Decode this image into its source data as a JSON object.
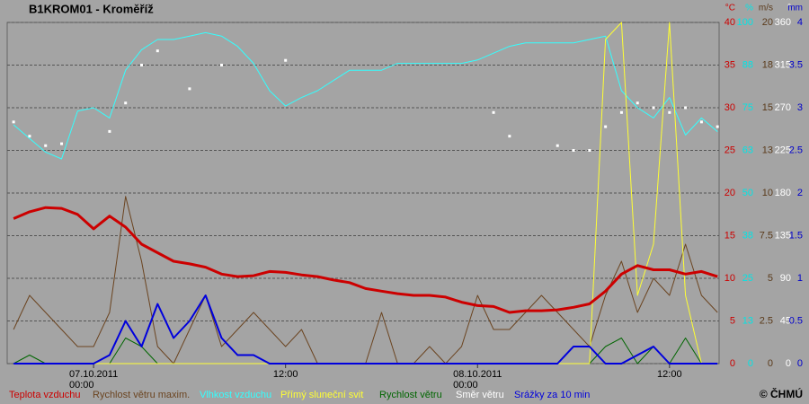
{
  "chart_data": {
    "type": "line",
    "title": "B1KROM01 - Kroměříž",
    "credit": "© ČHMÚ",
    "grid": true,
    "xlim": [
      -5.4,
      39.1
    ],
    "xticks": [
      {
        "value": 0,
        "label": "07.10.2011\n00:00"
      },
      {
        "value": 12,
        "label": "12:00"
      },
      {
        "value": 24,
        "label": "08.10.2011\n00:00"
      },
      {
        "value": 36,
        "label": "12:00"
      }
    ],
    "axes": [
      {
        "unit": "°C",
        "color": "#cc0000",
        "ylim": [
          0,
          40
        ],
        "yticks": [
          0,
          5,
          10,
          15,
          20,
          25,
          30,
          35,
          40
        ]
      },
      {
        "unit": "%",
        "color": "#00e5e5",
        "ylim": [
          0,
          100
        ],
        "yticks": [
          0,
          {
            "value": 12.5,
            "label": "13"
          },
          25,
          {
            "value": 37.5,
            "label": "38"
          },
          50,
          {
            "value": 62.5,
            "label": "63"
          },
          75,
          {
            "value": 87.5,
            "label": "88"
          },
          100
        ]
      },
      {
        "unit": "m/s",
        "color": "#5a3a1a",
        "ylim": [
          0,
          20
        ],
        "yticks": [
          0,
          2.5,
          5,
          7.5,
          10,
          {
            "value": 12.5,
            "label": "13"
          },
          15,
          {
            "value": 17.5,
            "label": "18"
          },
          20
        ]
      },
      {
        "unit": "°",
        "color": "#ffffff",
        "ylim": [
          0,
          360
        ],
        "yticks": [
          0,
          45,
          90,
          135,
          180,
          225,
          270,
          315,
          360
        ]
      },
      {
        "unit": "mm",
        "color": "#0000cc",
        "ylim": [
          0,
          4
        ],
        "yticks": [
          0,
          0.5,
          1,
          1.5,
          2,
          2.5,
          3,
          3.5,
          4
        ]
      }
    ],
    "x": [
      -5,
      -4,
      -3,
      -2,
      -1,
      0,
      1,
      2,
      3,
      4,
      5,
      6,
      7,
      8,
      9,
      10,
      11,
      12,
      13,
      14,
      15,
      16,
      17,
      18,
      19,
      20,
      21,
      22,
      23,
      24,
      25,
      26,
      27,
      28,
      29,
      30,
      31,
      32,
      33,
      34,
      35,
      36,
      37,
      38,
      39
    ],
    "series": [
      {
        "name": "Teplota vzduchu",
        "color": "#cc0000",
        "axis": 0,
        "kind": "line",
        "width": 3,
        "values": [
          17.0,
          17.8,
          18.3,
          18.2,
          17.5,
          15.8,
          17.3,
          16.0,
          14.0,
          13.0,
          12.0,
          11.7,
          11.3,
          10.5,
          10.2,
          10.3,
          10.8,
          10.7,
          10.4,
          10.2,
          9.8,
          9.5,
          8.8,
          8.5,
          8.2,
          8.0,
          8.0,
          7.8,
          7.2,
          6.8,
          6.7,
          6.0,
          6.2,
          6.2,
          6.3,
          6.6,
          7.0,
          8.5,
          10.5,
          11.5,
          11.0,
          11.0,
          10.5,
          10.8,
          10.2
        ]
      },
      {
        "name": "Rychlost větru maxim.",
        "color": "#6b4420",
        "axis": 2,
        "kind": "line",
        "width": 1,
        "values": [
          2,
          4,
          3,
          2,
          1,
          1,
          3,
          9.8,
          6,
          1,
          0,
          2,
          4,
          1,
          2,
          3,
          2,
          1,
          2,
          0,
          0,
          0,
          0,
          3,
          0,
          0,
          1,
          0,
          1,
          4,
          2,
          2,
          3,
          4,
          3,
          2,
          1,
          4,
          6,
          3,
          5,
          4,
          7,
          4,
          3
        ]
      },
      {
        "name": "Vlhkost vzduchu",
        "color": "#33ffff",
        "axis": 1,
        "kind": "line",
        "width": 1,
        "values": [
          70,
          66,
          62,
          60,
          74,
          75,
          72,
          86,
          92,
          95,
          95,
          96,
          97,
          96,
          93,
          88,
          80,
          75.5,
          78,
          80,
          83,
          86,
          86,
          86,
          88,
          88,
          88,
          88,
          88,
          89,
          91,
          93,
          94,
          94,
          94,
          94,
          95,
          96,
          80,
          75,
          72,
          78,
          67,
          72,
          68
        ]
      },
      {
        "name": "Přímý sluneční svit",
        "color": "#ffff33",
        "axis": 1,
        "kind": "line",
        "width": 1,
        "values": [
          0,
          0,
          0,
          0,
          0,
          0,
          0,
          0,
          0,
          0,
          0,
          0,
          0,
          0,
          0,
          0,
          0,
          0,
          0,
          0,
          0,
          0,
          0,
          0,
          0,
          0,
          0,
          0,
          0,
          0,
          0,
          0,
          0,
          0,
          0,
          0,
          0,
          95,
          100,
          20,
          35,
          100,
          20,
          0,
          0
        ]
      },
      {
        "name": "Rychlost větru",
        "color": "#006600",
        "axis": 2,
        "kind": "line",
        "width": 1,
        "values": [
          0,
          0.5,
          0,
          0,
          0,
          0,
          0,
          1.5,
          1,
          0,
          0,
          0,
          0,
          0,
          0,
          0,
          0,
          0,
          0,
          0,
          0,
          0,
          0,
          0,
          0,
          0,
          0,
          0,
          0,
          0,
          0,
          0,
          0,
          0,
          0,
          0,
          0,
          1,
          1.5,
          0,
          1,
          0,
          1.5,
          0,
          0
        ]
      },
      {
        "name": "Směr větru",
        "color": "#ffffff",
        "axis": 3,
        "kind": "scatter",
        "values": [
          255,
          240,
          230,
          232,
          null,
          null,
          245,
          275,
          315,
          330,
          null,
          290,
          null,
          315,
          null,
          null,
          null,
          320,
          null,
          null,
          null,
          null,
          null,
          null,
          null,
          null,
          null,
          null,
          null,
          null,
          265,
          240,
          null,
          null,
          230,
          225,
          225,
          250,
          265,
          275,
          270,
          265,
          270,
          255,
          250
        ]
      },
      {
        "name": "Srážky za 10 min",
        "color": "#0000dd",
        "axis": 4,
        "kind": "line",
        "width": 2,
        "values": [
          0,
          0,
          0,
          0,
          0,
          0,
          0.1,
          0.5,
          0.2,
          0.7,
          0.3,
          0.5,
          0.8,
          0.3,
          0.1,
          0.1,
          0,
          0,
          0,
          0,
          0,
          0,
          0,
          0,
          0,
          0,
          0,
          0,
          0,
          0,
          0,
          0,
          0,
          0,
          0,
          0.2,
          0.2,
          0,
          0,
          0.1,
          0.2,
          0,
          0,
          0,
          0
        ]
      }
    ]
  }
}
